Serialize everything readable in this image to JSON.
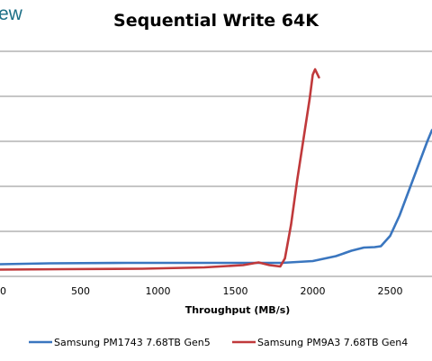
{
  "logo_text": "ew",
  "chart_data": {
    "type": "line",
    "title": "Sequential Write 64K",
    "xlabel": "Throughput (MB/s)",
    "ylabel": "",
    "xlim": [
      -20,
      2770
    ],
    "ylim": [
      0,
      5
    ],
    "x_ticks": [
      0,
      500,
      1000,
      1500,
      2000,
      2500
    ],
    "x_tick_labels": [
      "0",
      "500",
      "1000",
      "1500",
      "2000",
      "2500"
    ],
    "y_gridlines": [
      1,
      2,
      3,
      4,
      5
    ],
    "grid": true,
    "legend": "bottom",
    "series": [
      {
        "name": "Samsung PM1743 7.68TB Gen5",
        "color": "#3a76bf",
        "x": [
          -20,
          300,
          800,
          1300,
          1800,
          2000,
          2150,
          2250,
          2330,
          2400,
          2440,
          2500,
          2560,
          2620,
          2680,
          2740,
          2770
        ],
        "y": [
          0.27,
          0.29,
          0.3,
          0.3,
          0.3,
          0.34,
          0.45,
          0.57,
          0.64,
          0.65,
          0.67,
          0.9,
          1.35,
          1.9,
          2.45,
          3.0,
          3.25
        ]
      },
      {
        "name": "Samsung PM9A3 7.68TB Gen4",
        "color": "#c0393b",
        "x": [
          -20,
          400,
          900,
          1300,
          1550,
          1650,
          1720,
          1790,
          1820,
          1860,
          1900,
          1940,
          1980,
          2000,
          2015,
          2040
        ],
        "y": [
          0.15,
          0.16,
          0.17,
          0.2,
          0.25,
          0.31,
          0.25,
          0.22,
          0.4,
          1.15,
          2.15,
          3.05,
          3.95,
          4.48,
          4.6,
          4.42
        ]
      }
    ]
  }
}
